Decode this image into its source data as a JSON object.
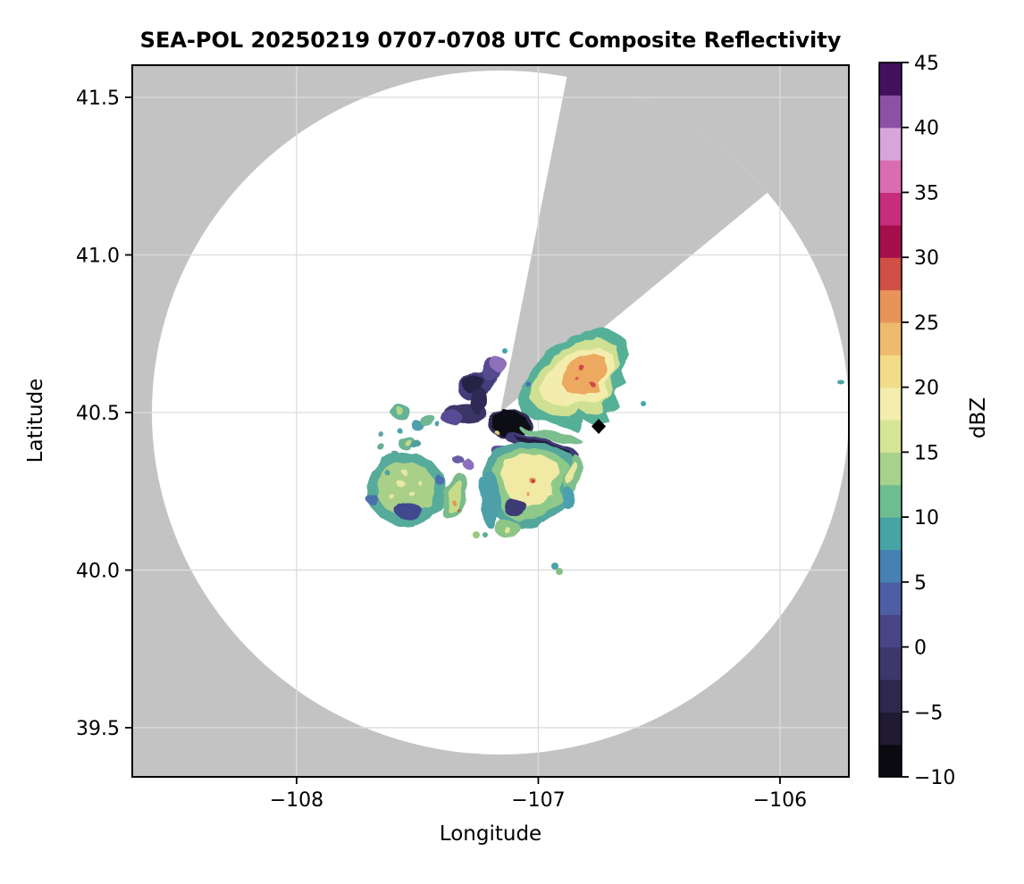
{
  "figure": {
    "title": "SEA-POL 20250219 0707-0708 UTC Composite Reflectivity"
  },
  "axes": {
    "xlabel": "Longitude",
    "ylabel": "Latitude",
    "x_range": [
      -108.68,
      -105.715
    ],
    "y_range": [
      39.344,
      41.602
    ],
    "x_ticks": [
      {
        "value": -108,
        "label": "−108"
      },
      {
        "value": -107,
        "label": "−107"
      },
      {
        "value": -106,
        "label": "−106"
      }
    ],
    "y_ticks": [
      {
        "value": 41.5,
        "label": "41.5"
      },
      {
        "value": 41.0,
        "label": "41.0"
      },
      {
        "value": 40.5,
        "label": "40.5"
      },
      {
        "value": 40.0,
        "label": "40.0"
      },
      {
        "value": 39.5,
        "label": "39.5"
      }
    ],
    "grid_color": "#dcdcdc",
    "nodata_color": "#c3c3c3",
    "coverage_color": "#ffffff",
    "frame_color": "#000000"
  },
  "colorbar": {
    "label": "dBZ",
    "vmin": -10,
    "vmax": 45,
    "tick_values": [
      45,
      40,
      35,
      30,
      25,
      20,
      15,
      10,
      5,
      0,
      -5,
      -10
    ],
    "tick_labels": [
      "45",
      "40",
      "35",
      "30",
      "25",
      "20",
      "15",
      "10",
      "5",
      "0",
      "−5",
      "−10"
    ],
    "block_colors_low_to_high": [
      "#0b0a11",
      "#201b33",
      "#2f284e",
      "#3d376a",
      "#474586",
      "#4d5ea4",
      "#4581b2",
      "#47a4a4",
      "#6ebd92",
      "#a6d28c",
      "#d6e496",
      "#f3edae",
      "#f2dc88",
      "#eeba6c",
      "#e9935a",
      "#d05045",
      "#a50f4b",
      "#c62d7c",
      "#dc6cb2",
      "#d7a5da",
      "#8c51a5",
      "#43115c"
    ]
  },
  "chart_data": {
    "type": "heatmap",
    "title": "SEA-POL 20250219 0707-0708 UTC Composite Reflectivity",
    "xlabel": "Longitude",
    "ylabel": "Latitude",
    "xlim": [
      -108.68,
      -105.72
    ],
    "ylim": [
      39.34,
      41.6
    ],
    "grid": true,
    "colorbar_label": "dBZ",
    "value_range": [
      -10,
      45
    ],
    "radar": {
      "name": "SEA-POL",
      "lon": -107.14,
      "lat": 40.5,
      "coverage_semiaxis_deg_lon": 1.44,
      "coverage_semiaxis_deg_lat": 1.08,
      "blocked_sector_azimuth_deg": [
        11,
        50
      ],
      "nodata_shading": "gray outside coverage circle and inside blocked sector"
    },
    "echo_regions": [
      {
        "name": "northeast-storm",
        "center_lon": -106.77,
        "center_lat": 40.62,
        "extent_lon": [
          -107.09,
          -106.63
        ],
        "extent_lat": [
          40.5,
          40.75
        ],
        "typical_dbz": 18,
        "peak_dbz": 30
      },
      {
        "name": "north-low-reflectivity-band",
        "center_lon": -107.3,
        "center_lat": 40.54,
        "typical_dbz": -4,
        "peak_dbz": 2
      },
      {
        "name": "center-black-patch",
        "center_lon": -107.12,
        "center_lat": 40.46,
        "typical_dbz": -10
      },
      {
        "name": "southeast-dark-streak",
        "center_lon": -106.98,
        "center_lat": 40.4,
        "typical_dbz": -6
      },
      {
        "name": "south-central-cluster",
        "center_lon": -107.03,
        "center_lat": 40.27,
        "typical_dbz": 16,
        "peak_dbz": 30
      },
      {
        "name": "southwest-cluster",
        "center_lon": -107.55,
        "center_lat": 40.25,
        "typical_dbz": 12,
        "peak_dbz": 18,
        "embedded_low_patch_dbz": 0
      },
      {
        "name": "west-small-cells",
        "center_lon": -107.45,
        "center_lat": 40.42,
        "typical_dbz": 10
      },
      {
        "name": "far-south-specks",
        "center_lon": -106.93,
        "center_lat": 40.0,
        "typical_dbz": 10
      }
    ],
    "markers": [
      {
        "name": "site-marker-diamond",
        "shape": "diamond",
        "color": "#000000",
        "lon": -106.75,
        "lat": 40.46
      }
    ]
  }
}
